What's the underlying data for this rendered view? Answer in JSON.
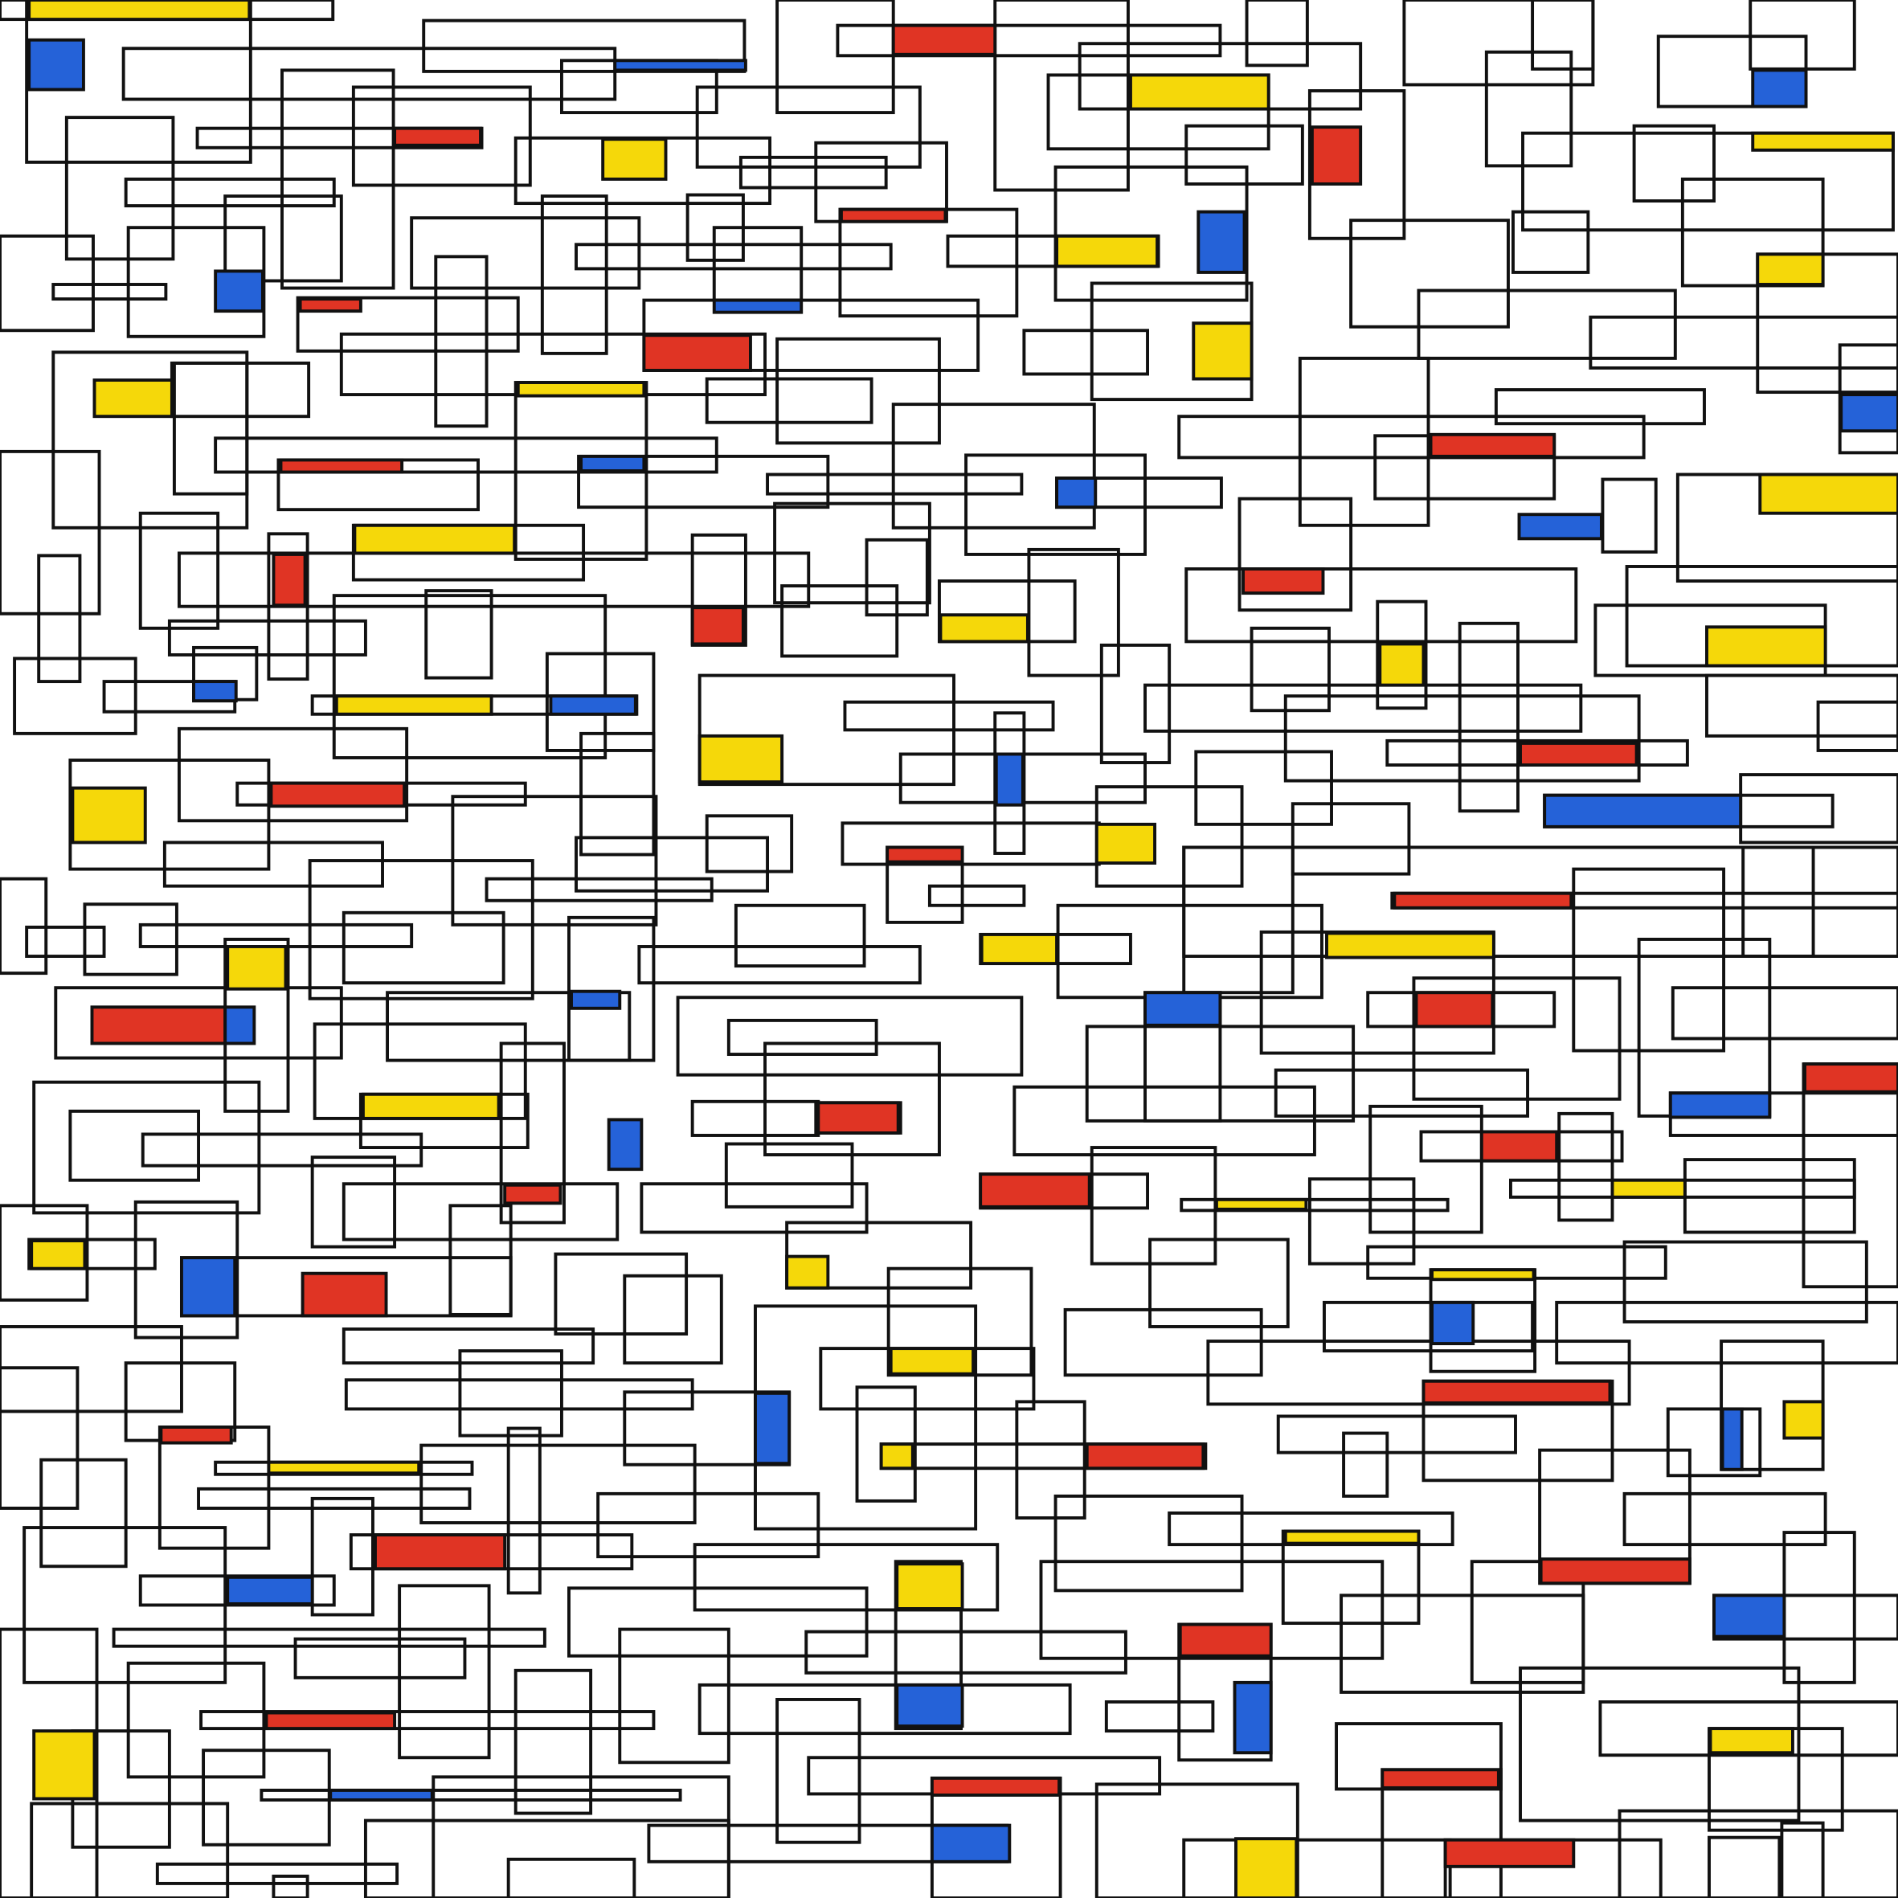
{
  "palette": {
    "background": "#ffffff",
    "line": "#111111",
    "red": "#e03424",
    "yellow": "#f5d80a",
    "blue": "#2562d8"
  }
}
